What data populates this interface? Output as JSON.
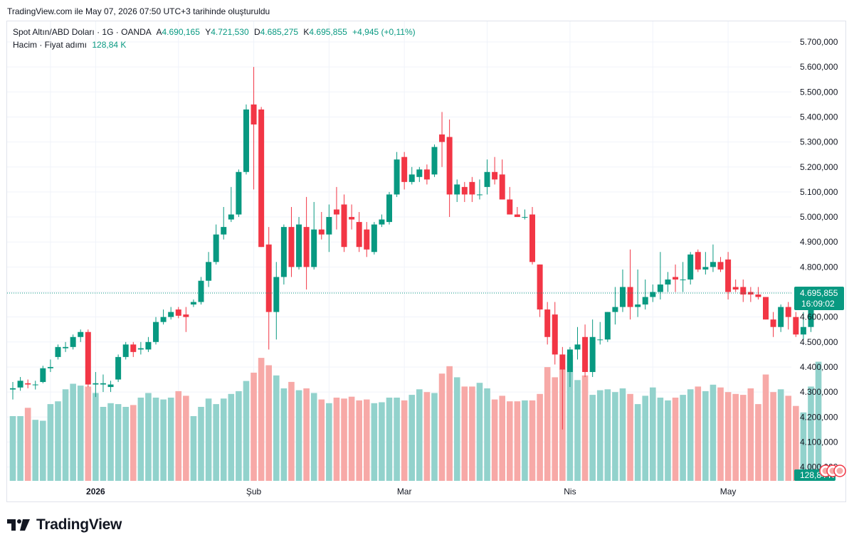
{
  "header": {
    "created": "TradingView.com ile May 07, 2026 07:50 UTC+3 tarihinde oluşturuldu"
  },
  "legend": {
    "symbol": "Spot Altın/ABD Doları",
    "interval": "1G",
    "source": "OANDA",
    "open_label": "A",
    "open": "4.690,165",
    "high_label": "Y",
    "high": "4.721,530",
    "low_label": "D",
    "low": "4.685,275",
    "close_label": "K",
    "close": "4.695,855",
    "change": "+4,945 (+0,11%)",
    "volume_label": "Hacim · Fiyat adımı",
    "volume_value": "128,84 K"
  },
  "price_badge": {
    "price": "4.695,855",
    "countdown": "16:09:02"
  },
  "volume_badge": "128,84 K",
  "colors": {
    "up": "#089981",
    "down": "#f23645",
    "up_vol": "#92d2cc",
    "down_vol": "#f7a9a7"
  },
  "footer": {
    "brand": "TradingView"
  },
  "chart_data": {
    "type": "candlestick",
    "title": "Spot Altın/ABD Doları · 1G · OANDA",
    "y_ticks": [
      "5.700,000",
      "5.600,000",
      "5.500,000",
      "5.400,000",
      "5.300,000",
      "5.200,000",
      "5.100,000",
      "5.000,000",
      "4.900,000",
      "4.800,000",
      "4.700,000",
      "4.600,000",
      "4.500,000",
      "4.400,000",
      "4.300,000",
      "4.200,000",
      "4.100,000",
      "4.000,000"
    ],
    "y_tick_values": [
      5700,
      5600,
      5500,
      5400,
      5300,
      5200,
      5100,
      5000,
      4900,
      4800,
      4700,
      4600,
      4500,
      4400,
      4300,
      4200,
      4100,
      4000
    ],
    "x_labels": [
      {
        "label": "2026",
        "index": 11
      },
      {
        "label": "Şub",
        "index": 32
      },
      {
        "label": "Mar",
        "index": 52
      },
      {
        "label": "Nis",
        "index": 74
      },
      {
        "label": "May",
        "index": 95
      }
    ],
    "last_price": 4695.855,
    "columns": [
      "open",
      "high",
      "low",
      "close",
      "volume_k"
    ],
    "candles": [
      [
        4310,
        4340,
        4270,
        4315,
        70
      ],
      [
        4318,
        4360,
        4305,
        4345,
        70
      ],
      [
        4335,
        4350,
        4315,
        4330,
        79
      ],
      [
        4330,
        4345,
        4310,
        4330,
        66
      ],
      [
        4340,
        4405,
        4335,
        4395,
        65
      ],
      [
        4395,
        4430,
        4380,
        4400,
        83
      ],
      [
        4440,
        4490,
        4430,
        4480,
        86
      ],
      [
        4475,
        4500,
        4460,
        4480,
        99
      ],
      [
        4480,
        4530,
        4470,
        4520,
        105
      ],
      [
        4520,
        4550,
        4500,
        4540,
        103
      ],
      [
        4540,
        4550,
        4320,
        4330,
        102
      ],
      [
        4330,
        4380,
        4280,
        4335,
        95
      ],
      [
        4330,
        4370,
        4300,
        4335,
        80
      ],
      [
        4320,
        4345,
        4300,
        4330,
        84
      ],
      [
        4350,
        4450,
        4340,
        4440,
        83
      ],
      [
        4440,
        4500,
        4430,
        4490,
        80
      ],
      [
        4490,
        4500,
        4440,
        4460,
        82
      ],
      [
        4470,
        4500,
        4450,
        4475,
        90
      ],
      [
        4470,
        4520,
        4460,
        4500,
        95
      ],
      [
        4500,
        4600,
        4490,
        4580,
        90
      ],
      [
        4580,
        4630,
        4570,
        4600,
        88
      ],
      [
        4600,
        4640,
        4590,
        4620,
        90
      ],
      [
        4630,
        4640,
        4595,
        4605,
        97
      ],
      [
        4610,
        4640,
        4540,
        4600,
        92
      ],
      [
        4650,
        4670,
        4640,
        4660,
        70
      ],
      [
        4660,
        4760,
        4650,
        4745,
        80
      ],
      [
        4745,
        4860,
        4720,
        4820,
        89
      ],
      [
        4820,
        4970,
        4810,
        4930,
        83
      ],
      [
        4930,
        5040,
        4910,
        4960,
        89
      ],
      [
        4990,
        5120,
        4980,
        5010,
        94
      ],
      [
        5010,
        5190,
        5000,
        5180,
        97
      ],
      [
        5180,
        5450,
        5170,
        5430,
        108
      ],
      [
        5450,
        5600,
        5110,
        5370,
        117
      ],
      [
        5430,
        5440,
        4880,
        4880,
        133
      ],
      [
        4890,
        4960,
        4470,
        4620,
        125
      ],
      [
        4620,
        4820,
        4510,
        4760,
        114
      ],
      [
        4760,
        4970,
        4730,
        4960,
        100
      ],
      [
        4960,
        5040,
        4760,
        4800,
        107
      ],
      [
        4800,
        5000,
        4790,
        4970,
        98
      ],
      [
        4960,
        5080,
        4710,
        4800,
        100
      ],
      [
        4800,
        5060,
        4790,
        4950,
        95
      ],
      [
        4950,
        5020,
        4910,
        4930,
        88
      ],
      [
        4930,
        5050,
        4860,
        5000,
        84
      ],
      [
        5030,
        5120,
        4950,
        5010,
        90
      ],
      [
        5050,
        5090,
        4860,
        4880,
        89
      ],
      [
        5000,
        5050,
        4950,
        4990,
        91
      ],
      [
        4980,
        5020,
        4860,
        4880,
        87
      ],
      [
        4950,
        4980,
        4840,
        4870,
        88
      ],
      [
        4860,
        4980,
        4850,
        4970,
        84
      ],
      [
        4970,
        5010,
        4960,
        4990,
        85
      ],
      [
        4980,
        5100,
        4970,
        5090,
        90
      ],
      [
        5090,
        5260,
        5080,
        5230,
        90
      ],
      [
        5240,
        5260,
        5110,
        5140,
        87
      ],
      [
        5140,
        5200,
        5130,
        5170,
        93
      ],
      [
        5160,
        5200,
        5140,
        5190,
        99
      ],
      [
        5190,
        5210,
        5130,
        5150,
        96
      ],
      [
        5170,
        5290,
        5160,
        5280,
        95
      ],
      [
        5330,
        5420,
        5200,
        5300,
        116
      ],
      [
        5320,
        5390,
        5000,
        5090,
        124
      ],
      [
        5090,
        5150,
        5060,
        5130,
        112
      ],
      [
        5120,
        5140,
        5060,
        5090,
        102
      ],
      [
        5140,
        5160,
        5060,
        5090,
        102
      ],
      [
        5090,
        5150,
        5070,
        5090,
        106
      ],
      [
        5120,
        5230,
        5090,
        5180,
        100
      ],
      [
        5180,
        5240,
        5130,
        5150,
        88
      ],
      [
        5170,
        5230,
        5070,
        5070,
        92
      ],
      [
        5070,
        5120,
        5010,
        5010,
        86
      ],
      [
        5010,
        5040,
        5000,
        5000,
        86
      ],
      [
        5000,
        5030,
        4990,
        5000,
        87
      ],
      [
        5010,
        5040,
        4810,
        4820,
        87
      ],
      [
        4810,
        4810,
        4600,
        4630,
        94
      ],
      [
        4630,
        4660,
        4490,
        4520,
        123
      ],
      [
        4610,
        4660,
        4410,
        4450,
        112
      ],
      [
        4450,
        4480,
        4150,
        4390,
        121
      ],
      [
        4380,
        4480,
        4320,
        4470,
        136
      ],
      [
        4470,
        4560,
        4430,
        4490,
        109
      ],
      [
        4520,
        4570,
        4360,
        4380,
        114
      ],
      [
        4380,
        4590,
        4360,
        4520,
        93
      ],
      [
        4510,
        4580,
        4490,
        4510,
        98
      ],
      [
        4510,
        4620,
        4500,
        4620,
        99
      ],
      [
        4620,
        4720,
        4570,
        4640,
        96
      ],
      [
        4640,
        4790,
        4620,
        4720,
        100
      ],
      [
        4720,
        4870,
        4590,
        4640,
        94
      ],
      [
        4640,
        4790,
        4600,
        4650,
        83
      ],
      [
        4650,
        4750,
        4630,
        4680,
        92
      ],
      [
        4680,
        4730,
        4660,
        4700,
        101
      ],
      [
        4700,
        4860,
        4670,
        4730,
        90
      ],
      [
        4730,
        4780,
        4700,
        4750,
        87
      ],
      [
        4760,
        4810,
        4700,
        4750,
        90
      ],
      [
        4750,
        4820,
        4700,
        4750,
        93
      ],
      [
        4750,
        4860,
        4730,
        4850,
        99
      ],
      [
        4860,
        4870,
        4780,
        4790,
        102
      ],
      [
        4790,
        4860,
        4770,
        4800,
        97
      ],
      [
        4800,
        4890,
        4780,
        4820,
        104
      ],
      [
        4820,
        4840,
        4780,
        4790,
        101
      ],
      [
        4830,
        4860,
        4670,
        4700,
        96
      ],
      [
        4720,
        4750,
        4700,
        4710,
        94
      ],
      [
        4720,
        4750,
        4660,
        4690,
        93
      ],
      [
        4700,
        4720,
        4660,
        4690,
        100
      ],
      [
        4690,
        4720,
        4670,
        4680,
        83
      ],
      [
        4680,
        4680,
        4590,
        4590,
        115
      ],
      [
        4590,
        4620,
        4520,
        4560,
        96
      ],
      [
        4560,
        4650,
        4540,
        4640,
        99
      ],
      [
        4640,
        4660,
        4550,
        4600,
        92
      ],
      [
        4600,
        4620,
        4520,
        4530,
        81
      ],
      [
        4530,
        4620,
        4510,
        4560,
        74
      ],
      [
        4560,
        4720,
        4540,
        4690,
        102
      ],
      [
        4690,
        4721.53,
        4685.275,
        4695.855,
        128.84
      ]
    ]
  }
}
